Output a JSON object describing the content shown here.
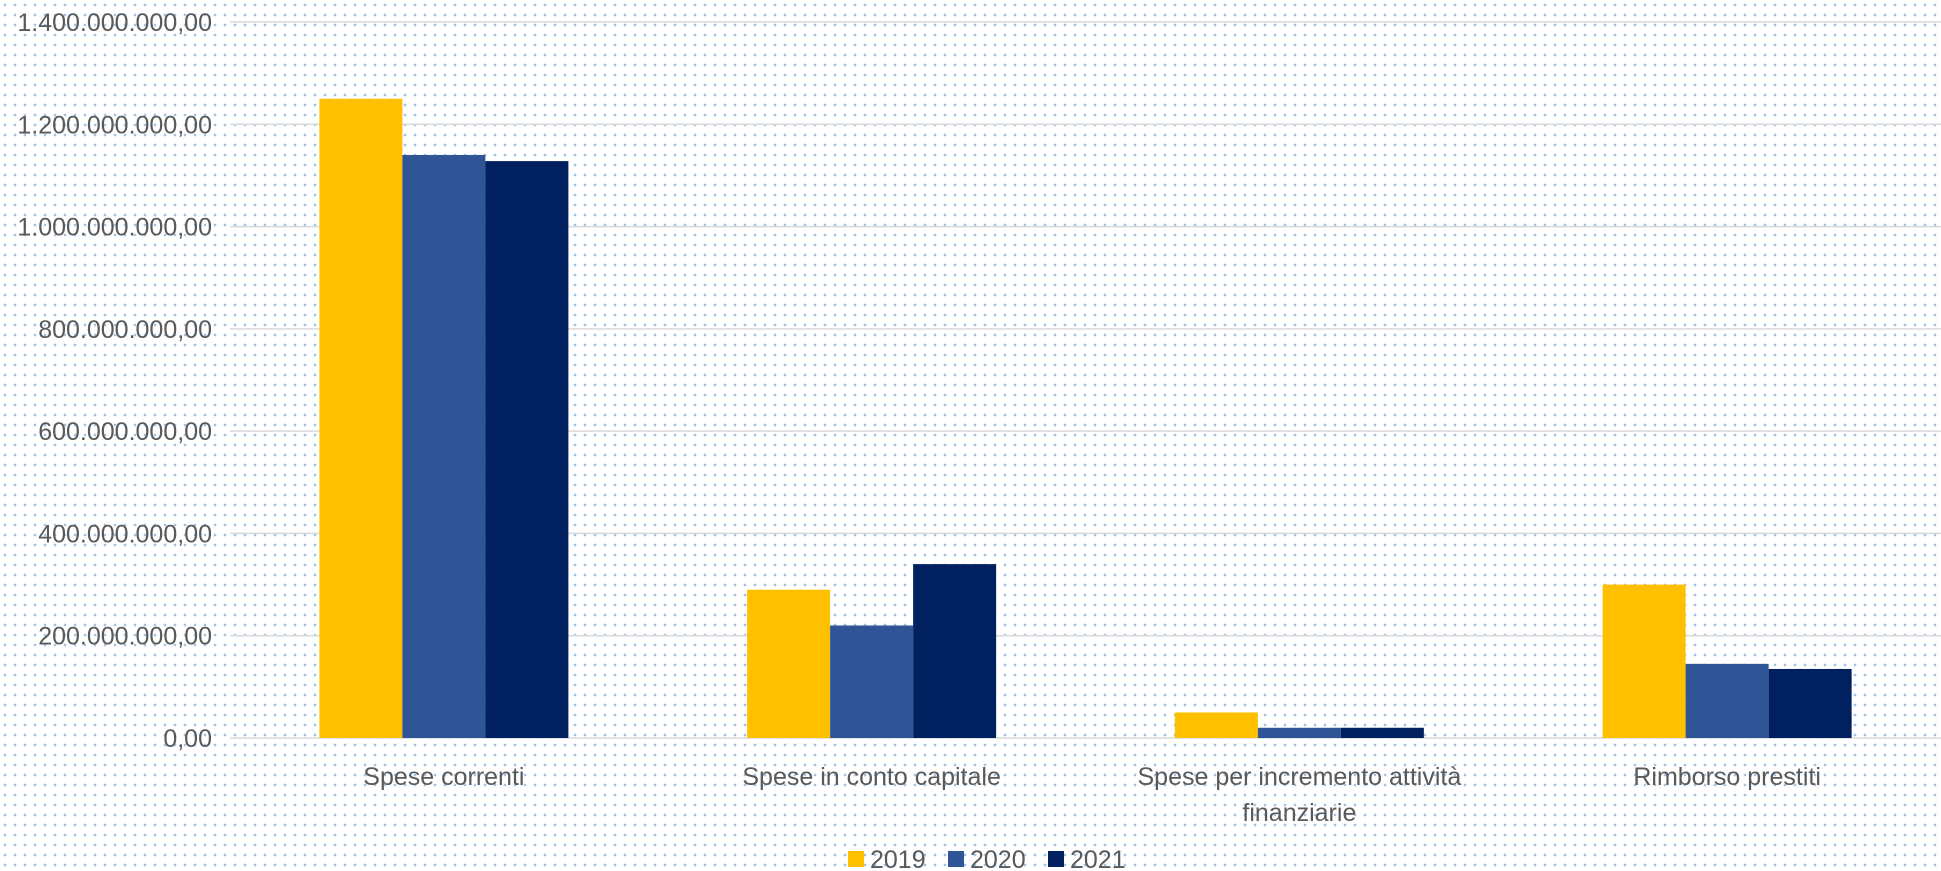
{
  "chart_data": {
    "type": "bar",
    "title": "",
    "xlabel": "",
    "ylabel": "",
    "categories": [
      [
        "Spese correnti"
      ],
      [
        "Spese in conto capitale"
      ],
      [
        "Spese per incremento attività",
        "finanziarie"
      ],
      [
        "Rimborso prestiti"
      ]
    ],
    "series": [
      {
        "name": "2019",
        "color": "#ffc000",
        "values": [
          1250000000,
          290000000,
          50000000,
          300000000
        ]
      },
      {
        "name": "2020",
        "color": "#2f5597",
        "values": [
          1140000000,
          220000000,
          20000000,
          145000000
        ]
      },
      {
        "name": "2021",
        "color": "#002060",
        "values": [
          1128000000,
          340000000,
          20000000,
          135000000
        ]
      }
    ],
    "ylim": [
      0,
      1400000000
    ],
    "yticks": [
      {
        "value": 0,
        "label": "0,00"
      },
      {
        "value": 200000000,
        "label": "200.000.000,00"
      },
      {
        "value": 400000000,
        "label": "400.000.000,00"
      },
      {
        "value": 600000000,
        "label": "600.000.000,00"
      },
      {
        "value": 800000000,
        "label": "800.000.000,00"
      },
      {
        "value": 1000000000,
        "label": "1.000.000.000,00"
      },
      {
        "value": 1200000000,
        "label": "1.200.000.000,00"
      },
      {
        "value": 1400000000,
        "label": "1.400.000.000,00"
      }
    ],
    "grid": true,
    "legend_position": "bottom",
    "colors": {
      "gridline": "#d9d9d9",
      "text": "#595959",
      "background_dots": "#9dc3e6"
    }
  }
}
